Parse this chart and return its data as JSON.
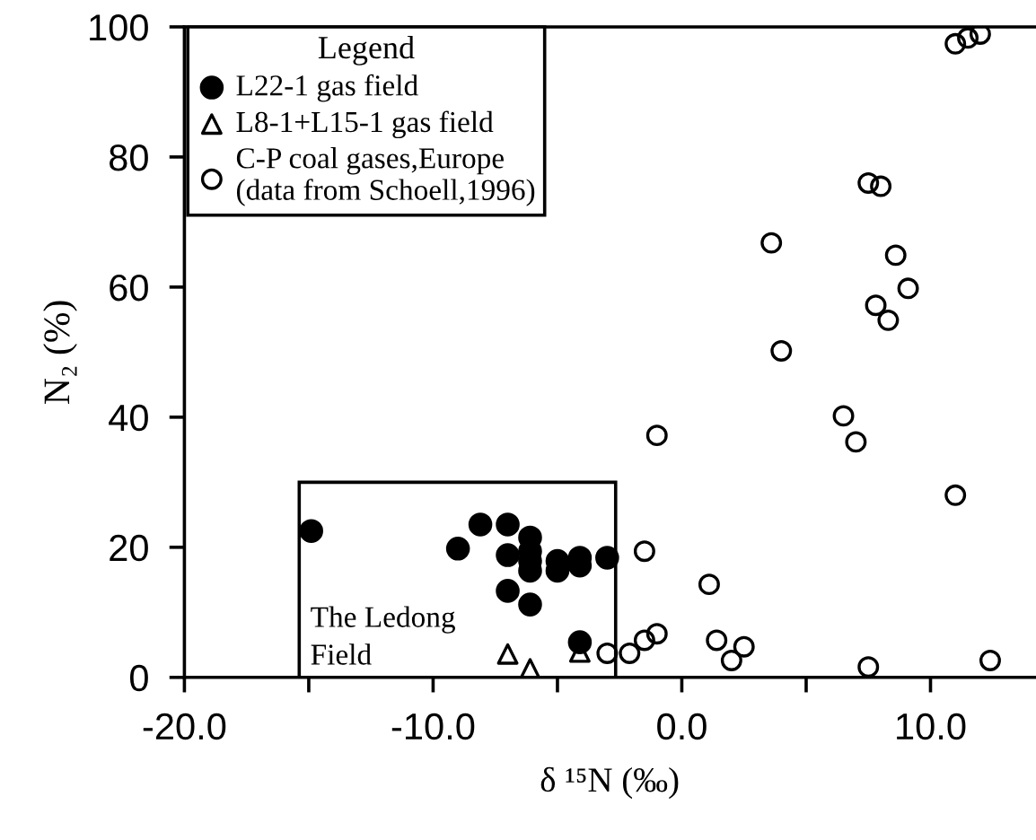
{
  "chart_data": {
    "type": "scatter",
    "xlabel": "δ ¹⁵N (‰)",
    "ylabel": "N₂ (%)",
    "legend_title": "Legend",
    "legend": "top left",
    "grid": false,
    "xlim": [
      -20,
      14.2
    ],
    "xticks": [
      {
        "value": -20,
        "label": "-20.0"
      },
      {
        "value": -15,
        "label": null
      },
      {
        "value": -10,
        "label": "-10.0"
      },
      {
        "value": -5,
        "label": null
      },
      {
        "value": 0,
        "label": "0.0"
      },
      {
        "value": 5,
        "label": null
      },
      {
        "value": 10,
        "label": "10.0"
      }
    ],
    "ylim": [
      0,
      100
    ],
    "yticks": [
      0,
      20,
      40,
      60,
      80,
      100
    ],
    "annotations": [
      "The Ledong\nField"
    ],
    "series": [
      {
        "name": "L22-1 gas field",
        "color": "#000000",
        "marker": "circle",
        "x": [
          -14.9,
          -9.0,
          -8.1,
          -7.0,
          -7.0,
          -7.0,
          -6.1,
          -6.1,
          -6.1,
          -6.1,
          -6.1,
          -5.0,
          -5.0,
          -4.1,
          -4.1,
          -3.0,
          -4.1
        ],
        "values": [
          22.5,
          19.8,
          23.5,
          23.5,
          18.8,
          13.3,
          21.5,
          19.4,
          17.9,
          16.4,
          11.2,
          17.9,
          16.4,
          18.4,
          17.2,
          18.4,
          5.4
        ]
      },
      {
        "name": "L8-1+L15-1 gas field",
        "color": "#000000",
        "marker": "triangle",
        "x": [
          -7.0,
          -6.1,
          -4.1
        ],
        "values": [
          3.6,
          1.3,
          3.9
        ]
      },
      {
        "name": "C-P coal gases,Europe\n(data from Schoell,1996)",
        "color": "#000000",
        "marker": "circle",
        "x": [
          11.0,
          11.5,
          12.0,
          7.5,
          8.0,
          3.6,
          8.6,
          9.1,
          7.8,
          8.3,
          4.0,
          -1.0,
          6.5,
          7.0,
          11.0,
          -1.5,
          1.1,
          -1.0,
          -1.5,
          -2.1,
          -3.0,
          1.4,
          2.5,
          2.0,
          7.5,
          12.4
        ],
        "values": [
          97.4,
          98.3,
          98.9,
          76.0,
          75.5,
          66.8,
          64.9,
          59.8,
          57.2,
          54.9,
          50.2,
          37.2,
          40.2,
          36.2,
          28.0,
          19.4,
          14.3,
          6.7,
          5.7,
          3.7,
          3.7,
          5.7,
          4.7,
          2.6,
          1.6,
          2.6
        ]
      }
    ]
  }
}
